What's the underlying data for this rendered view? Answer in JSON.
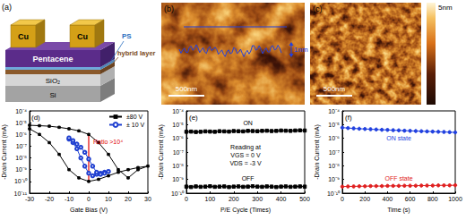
{
  "schematic": {
    "label": "(a)",
    "electrode_labels": [
      "Cu",
      "Cu"
    ],
    "layers": [
      "Pentacene",
      "PS",
      "hybrid layer",
      "SiO₂",
      "Si"
    ]
  },
  "afm": {
    "b": {
      "label": "(b)",
      "scale_bar": "500nm",
      "profile_height": "1nm"
    },
    "c": {
      "label": "(c)",
      "scale_bar": "500nm"
    },
    "colorbar_label": "5nm"
  },
  "chart_data": [
    {
      "type": "line",
      "label": "(d)",
      "x_label": "Gate Bias (V)",
      "y_label": "-Drain Current (mA)",
      "xlim": [
        -30,
        30
      ],
      "xticks": [
        -30,
        -20,
        -10,
        0,
        10,
        20,
        30
      ],
      "ylim": [
        1e-11,
        0.0001
      ],
      "yticks": [
        {
          "value": 1e-11,
          "label": "10⁻¹¹"
        },
        {
          "value": 1e-10,
          "label": "10⁻¹⁰"
        },
        {
          "value": 1e-09,
          "label": "10⁻⁹"
        },
        {
          "value": 1e-08,
          "label": "10⁻⁸"
        },
        {
          "value": 1e-07,
          "label": "10⁻⁷"
        },
        {
          "value": 1e-06,
          "label": "10⁻⁶"
        },
        {
          "value": 1e-05,
          "label": "10⁻⁵"
        },
        {
          "value": 0.0001,
          "label": "10⁻⁴"
        }
      ],
      "log": "y",
      "grid": false,
      "legend": "upper right",
      "series": [
        {
          "name": "±80 V",
          "color": "#000000",
          "marker": "square",
          "line_style": "solid",
          "x": [
            -30,
            -25,
            -20,
            -15,
            -10,
            -5,
            0,
            5,
            10,
            15,
            20,
            25,
            30,
            25,
            20,
            15,
            10,
            5,
            0,
            -5,
            -10,
            -15,
            -20,
            -25,
            -30
          ],
          "values": [
            3e-06,
            1e-06,
            2e-07,
            2e-08,
            1e-09,
            2e-10,
            1e-10,
            1.5e-10,
            3e-10,
            6e-10,
            1e-09,
            1.5e-09,
            2e-09,
            1e-09,
            2e-10,
            1e-09,
            2e-08,
            2e-07,
            1e-06,
            2e-06,
            3e-06,
            4e-06,
            5e-06,
            5.5e-06,
            6e-06
          ]
        },
        {
          "name": "± 10 V",
          "color": "#1f3fd0",
          "marker": "circle_open",
          "line_style": "solid",
          "x": [
            -10,
            -8,
            -6,
            -4,
            -2,
            0,
            2,
            4,
            6,
            8,
            10,
            8,
            6,
            4,
            2,
            0,
            -2,
            -4,
            -6,
            -8,
            -10
          ],
          "values": [
            4e-07,
            2e-07,
            6e-08,
            1e-08,
            2e-09,
            5e-10,
            3e-10,
            4e-10,
            5e-10,
            6e-10,
            7e-10,
            5e-10,
            4e-10,
            6e-10,
            2e-09,
            8e-09,
            3e-08,
            8e-08,
            1.5e-07,
            3e-07,
            5e-07
          ]
        }
      ],
      "annotation": {
        "text": "Ratio >10⁴",
        "color": "#e00000",
        "x": 0,
        "y": [
          1e-10,
          1e-06
        ]
      }
    },
    {
      "type": "line",
      "label": "(e)",
      "x_label": "P/E Cycle (Times)",
      "y_label": "-Drain Current (mA)",
      "xlim": [
        0,
        500
      ],
      "xticks": [
        0,
        100,
        200,
        300,
        400,
        500
      ],
      "ylim": [
        1e-10,
        0.0001
      ],
      "yticks": [
        {
          "value": 1e-10,
          "label": "10⁻¹⁰"
        },
        {
          "value": 1e-09,
          "label": "10⁻⁹"
        },
        {
          "value": 1e-08,
          "label": "10⁻⁸"
        },
        {
          "value": 1e-07,
          "label": "10⁻⁷"
        },
        {
          "value": 1e-06,
          "label": "10⁻⁶"
        },
        {
          "value": 1e-05,
          "label": "10⁻⁵"
        },
        {
          "value": 0.0001,
          "label": "10⁻⁴"
        }
      ],
      "log": "y",
      "grid": false,
      "notes": [
        "Reading at",
        "VGS = 0 V",
        "VDS = -3 V"
      ],
      "series": [
        {
          "name": "ON",
          "color": "#000000",
          "marker": "square",
          "line_style": "solid",
          "x": [
            0,
            20,
            40,
            60,
            80,
            100,
            120,
            140,
            160,
            180,
            200,
            220,
            240,
            260,
            280,
            300,
            320,
            340,
            360,
            380,
            400,
            420,
            440,
            460,
            480,
            500
          ],
          "values": [
            3e-06,
            3.1e-06,
            2.9e-06,
            3e-06,
            3.2e-06,
            3.1e-06,
            3e-06,
            3.3e-06,
            3.2e-06,
            3.1e-06,
            3.4e-06,
            3.3e-06,
            3.2e-06,
            3.5e-06,
            3.4e-06,
            3.3e-06,
            3.5e-06,
            3.6e-06,
            3.4e-06,
            3.5e-06,
            3.7e-06,
            3.6e-06,
            3.5e-06,
            3.7e-06,
            3.8e-06,
            3.7e-06
          ]
        },
        {
          "name": "OFF",
          "color": "#000000",
          "marker": "square",
          "line_style": "solid",
          "x": [
            0,
            20,
            40,
            60,
            80,
            100,
            120,
            140,
            160,
            180,
            200,
            220,
            240,
            260,
            280,
            300,
            320,
            340,
            360,
            380,
            400,
            420,
            440,
            460,
            480,
            500
          ],
          "values": [
            3e-10,
            2.8e-10,
            3.1e-10,
            2.9e-10,
            3e-10,
            3.2e-10,
            2.9e-10,
            3e-10,
            3.1e-10,
            2.8e-10,
            3e-10,
            3.1e-10,
            2.9e-10,
            3e-10,
            3.2e-10,
            3e-10,
            2.9e-10,
            3.1e-10,
            3e-10,
            2.8e-10,
            3e-10,
            3.1e-10,
            2.9e-10,
            3e-10,
            3.1e-10,
            3e-10
          ]
        }
      ]
    },
    {
      "type": "line",
      "label": "(f)",
      "x_label": "Time (s)",
      "y_label": "-Drain Current (mA)",
      "xlim": [
        0,
        1000
      ],
      "xticks": [
        0,
        200,
        400,
        600,
        800,
        1000
      ],
      "ylim": [
        1e-10,
        0.0001
      ],
      "yticks": [
        {
          "value": 1e-10,
          "label": "10⁻¹⁰"
        },
        {
          "value": 1e-09,
          "label": "10⁻⁹"
        },
        {
          "value": 1e-08,
          "label": "10⁻⁸"
        },
        {
          "value": 1e-07,
          "label": "10⁻⁷"
        },
        {
          "value": 1e-06,
          "label": "10⁻⁶"
        },
        {
          "value": 1e-05,
          "label": "10⁻⁵"
        },
        {
          "value": 0.0001,
          "label": "10⁻⁴"
        }
      ],
      "log": "y",
      "grid": false,
      "series": [
        {
          "name": "ON state",
          "color": "#2040e0",
          "marker": "circle",
          "line_style": "solid",
          "x": [
            0,
            50,
            100,
            150,
            200,
            250,
            300,
            350,
            400,
            450,
            500,
            550,
            600,
            650,
            700,
            750,
            800,
            850,
            900,
            950,
            1000
          ],
          "values": [
            6e-06,
            5.6e-06,
            5.3e-06,
            5e-06,
            4.8e-06,
            4.6e-06,
            4.4e-06,
            4.2e-06,
            4.1e-06,
            3.9e-06,
            3.8e-06,
            3.6e-06,
            3.5e-06,
            3.4e-06,
            3.3e-06,
            3.2e-06,
            3.1e-06,
            3e-06,
            2.9e-06,
            2.8e-06,
            2.7e-06
          ]
        },
        {
          "name": "OFF state",
          "color": "#e02020",
          "marker": "circle",
          "line_style": "solid",
          "x": [
            0,
            50,
            100,
            150,
            200,
            250,
            300,
            350,
            400,
            450,
            500,
            550,
            600,
            650,
            700,
            750,
            800,
            850,
            900,
            950,
            1000
          ],
          "values": [
            3e-10,
            3.1e-10,
            3.1e-10,
            3.2e-10,
            3.2e-10,
            3.3e-10,
            3.3e-10,
            3.3e-10,
            3.4e-10,
            3.4e-10,
            3.4e-10,
            3.5e-10,
            3.5e-10,
            3.5e-10,
            3.6e-10,
            3.6e-10,
            3.6e-10,
            3.7e-10,
            3.7e-10,
            3.7e-10,
            3.8e-10
          ]
        }
      ]
    }
  ]
}
